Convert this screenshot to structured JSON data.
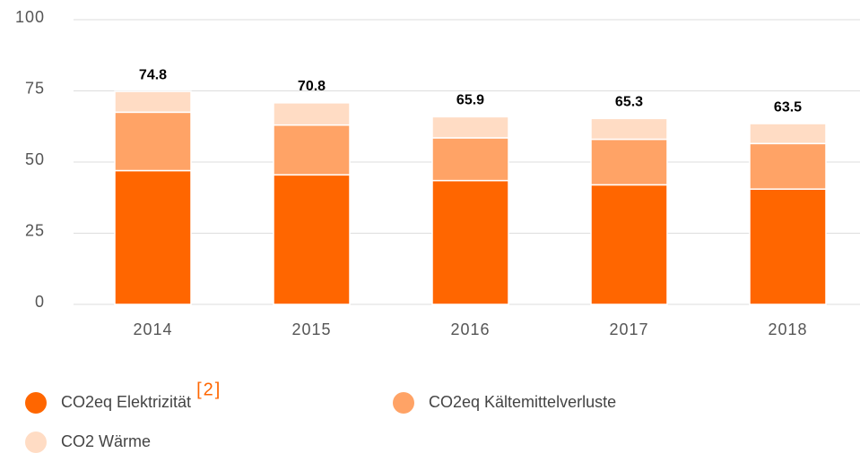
{
  "chart_data": {
    "type": "stacked_bar",
    "categories": [
      "2014",
      "2015",
      "2016",
      "2017",
      "2018"
    ],
    "series": [
      {
        "name": "CO2eq Elektrizität",
        "color": "#ff6600",
        "values": [
          47,
          45.5,
          43.5,
          42,
          40.5
        ]
      },
      {
        "name": "CO2eq Kältemittelverluste",
        "color": "#ffa366",
        "values": [
          20.5,
          17.5,
          15,
          16,
          16
        ]
      },
      {
        "name": "CO2 Wärme",
        "color": "#ffdcc4",
        "values": [
          7.3,
          7.8,
          7.4,
          7.3,
          7
        ]
      }
    ],
    "totals": [
      74.8,
      70.8,
      65.9,
      65.3,
      63.5
    ],
    "footnote_ref": "[2]",
    "ylim": [
      0,
      100
    ],
    "yticks": [
      0,
      25,
      50,
      75,
      100
    ],
    "grid": true
  }
}
